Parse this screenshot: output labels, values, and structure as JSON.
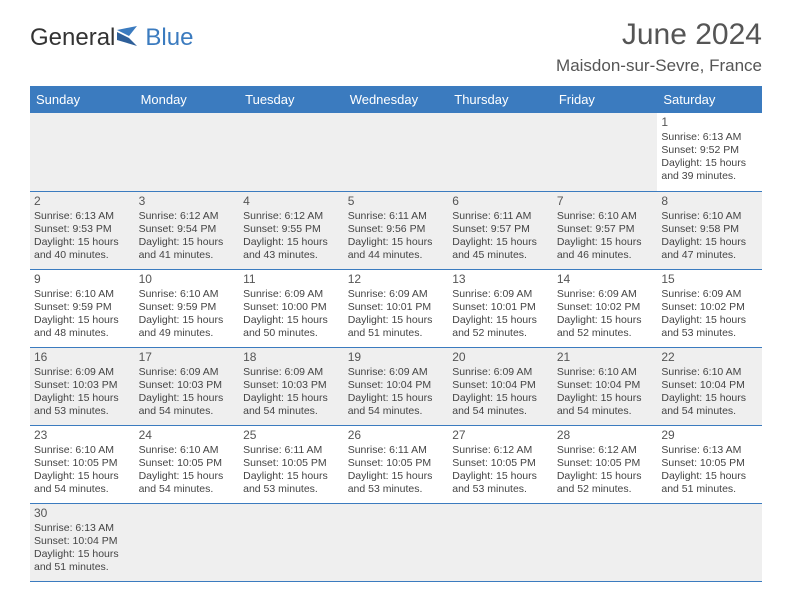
{
  "logo": {
    "text1": "General",
    "text2": "Blue"
  },
  "title": "June 2024",
  "location": "Maisdon-sur-Sevre, France",
  "colors": {
    "header_bg": "#3b7bbf",
    "header_text": "#ffffff",
    "shaded_bg": "#efefef",
    "border": "#3b7bbf",
    "logo_blue": "#3b7bbf",
    "text_color": "#444444"
  },
  "day_headers": [
    "Sunday",
    "Monday",
    "Tuesday",
    "Wednesday",
    "Thursday",
    "Friday",
    "Saturday"
  ],
  "days": {
    "1": {
      "sunrise": "Sunrise: 6:13 AM",
      "sunset": "Sunset: 9:52 PM",
      "daylight1": "Daylight: 15 hours",
      "daylight2": "and 39 minutes."
    },
    "2": {
      "sunrise": "Sunrise: 6:13 AM",
      "sunset": "Sunset: 9:53 PM",
      "daylight1": "Daylight: 15 hours",
      "daylight2": "and 40 minutes."
    },
    "3": {
      "sunrise": "Sunrise: 6:12 AM",
      "sunset": "Sunset: 9:54 PM",
      "daylight1": "Daylight: 15 hours",
      "daylight2": "and 41 minutes."
    },
    "4": {
      "sunrise": "Sunrise: 6:12 AM",
      "sunset": "Sunset: 9:55 PM",
      "daylight1": "Daylight: 15 hours",
      "daylight2": "and 43 minutes."
    },
    "5": {
      "sunrise": "Sunrise: 6:11 AM",
      "sunset": "Sunset: 9:56 PM",
      "daylight1": "Daylight: 15 hours",
      "daylight2": "and 44 minutes."
    },
    "6": {
      "sunrise": "Sunrise: 6:11 AM",
      "sunset": "Sunset: 9:57 PM",
      "daylight1": "Daylight: 15 hours",
      "daylight2": "and 45 minutes."
    },
    "7": {
      "sunrise": "Sunrise: 6:10 AM",
      "sunset": "Sunset: 9:57 PM",
      "daylight1": "Daylight: 15 hours",
      "daylight2": "and 46 minutes."
    },
    "8": {
      "sunrise": "Sunrise: 6:10 AM",
      "sunset": "Sunset: 9:58 PM",
      "daylight1": "Daylight: 15 hours",
      "daylight2": "and 47 minutes."
    },
    "9": {
      "sunrise": "Sunrise: 6:10 AM",
      "sunset": "Sunset: 9:59 PM",
      "daylight1": "Daylight: 15 hours",
      "daylight2": "and 48 minutes."
    },
    "10": {
      "sunrise": "Sunrise: 6:10 AM",
      "sunset": "Sunset: 9:59 PM",
      "daylight1": "Daylight: 15 hours",
      "daylight2": "and 49 minutes."
    },
    "11": {
      "sunrise": "Sunrise: 6:09 AM",
      "sunset": "Sunset: 10:00 PM",
      "daylight1": "Daylight: 15 hours",
      "daylight2": "and 50 minutes."
    },
    "12": {
      "sunrise": "Sunrise: 6:09 AM",
      "sunset": "Sunset: 10:01 PM",
      "daylight1": "Daylight: 15 hours",
      "daylight2": "and 51 minutes."
    },
    "13": {
      "sunrise": "Sunrise: 6:09 AM",
      "sunset": "Sunset: 10:01 PM",
      "daylight1": "Daylight: 15 hours",
      "daylight2": "and 52 minutes."
    },
    "14": {
      "sunrise": "Sunrise: 6:09 AM",
      "sunset": "Sunset: 10:02 PM",
      "daylight1": "Daylight: 15 hours",
      "daylight2": "and 52 minutes."
    },
    "15": {
      "sunrise": "Sunrise: 6:09 AM",
      "sunset": "Sunset: 10:02 PM",
      "daylight1": "Daylight: 15 hours",
      "daylight2": "and 53 minutes."
    },
    "16": {
      "sunrise": "Sunrise: 6:09 AM",
      "sunset": "Sunset: 10:03 PM",
      "daylight1": "Daylight: 15 hours",
      "daylight2": "and 53 minutes."
    },
    "17": {
      "sunrise": "Sunrise: 6:09 AM",
      "sunset": "Sunset: 10:03 PM",
      "daylight1": "Daylight: 15 hours",
      "daylight2": "and 54 minutes."
    },
    "18": {
      "sunrise": "Sunrise: 6:09 AM",
      "sunset": "Sunset: 10:03 PM",
      "daylight1": "Daylight: 15 hours",
      "daylight2": "and 54 minutes."
    },
    "19": {
      "sunrise": "Sunrise: 6:09 AM",
      "sunset": "Sunset: 10:04 PM",
      "daylight1": "Daylight: 15 hours",
      "daylight2": "and 54 minutes."
    },
    "20": {
      "sunrise": "Sunrise: 6:09 AM",
      "sunset": "Sunset: 10:04 PM",
      "daylight1": "Daylight: 15 hours",
      "daylight2": "and 54 minutes."
    },
    "21": {
      "sunrise": "Sunrise: 6:10 AM",
      "sunset": "Sunset: 10:04 PM",
      "daylight1": "Daylight: 15 hours",
      "daylight2": "and 54 minutes."
    },
    "22": {
      "sunrise": "Sunrise: 6:10 AM",
      "sunset": "Sunset: 10:04 PM",
      "daylight1": "Daylight: 15 hours",
      "daylight2": "and 54 minutes."
    },
    "23": {
      "sunrise": "Sunrise: 6:10 AM",
      "sunset": "Sunset: 10:05 PM",
      "daylight1": "Daylight: 15 hours",
      "daylight2": "and 54 minutes."
    },
    "24": {
      "sunrise": "Sunrise: 6:10 AM",
      "sunset": "Sunset: 10:05 PM",
      "daylight1": "Daylight: 15 hours",
      "daylight2": "and 54 minutes."
    },
    "25": {
      "sunrise": "Sunrise: 6:11 AM",
      "sunset": "Sunset: 10:05 PM",
      "daylight1": "Daylight: 15 hours",
      "daylight2": "and 53 minutes."
    },
    "26": {
      "sunrise": "Sunrise: 6:11 AM",
      "sunset": "Sunset: 10:05 PM",
      "daylight1": "Daylight: 15 hours",
      "daylight2": "and 53 minutes."
    },
    "27": {
      "sunrise": "Sunrise: 6:12 AM",
      "sunset": "Sunset: 10:05 PM",
      "daylight1": "Daylight: 15 hours",
      "daylight2": "and 53 minutes."
    },
    "28": {
      "sunrise": "Sunrise: 6:12 AM",
      "sunset": "Sunset: 10:05 PM",
      "daylight1": "Daylight: 15 hours",
      "daylight2": "and 52 minutes."
    },
    "29": {
      "sunrise": "Sunrise: 6:13 AM",
      "sunset": "Sunset: 10:05 PM",
      "daylight1": "Daylight: 15 hours",
      "daylight2": "and 51 minutes."
    },
    "30": {
      "sunrise": "Sunrise: 6:13 AM",
      "sunset": "Sunset: 10:04 PM",
      "daylight1": "Daylight: 15 hours",
      "daylight2": "and 51 minutes."
    }
  },
  "layout": {
    "weeks": [
      [
        null,
        null,
        null,
        null,
        null,
        null,
        "1"
      ],
      [
        "2",
        "3",
        "4",
        "5",
        "6",
        "7",
        "8"
      ],
      [
        "9",
        "10",
        "11",
        "12",
        "13",
        "14",
        "15"
      ],
      [
        "16",
        "17",
        "18",
        "19",
        "20",
        "21",
        "22"
      ],
      [
        "23",
        "24",
        "25",
        "26",
        "27",
        "28",
        "29"
      ],
      [
        "30",
        null,
        null,
        null,
        null,
        null,
        null
      ]
    ]
  }
}
